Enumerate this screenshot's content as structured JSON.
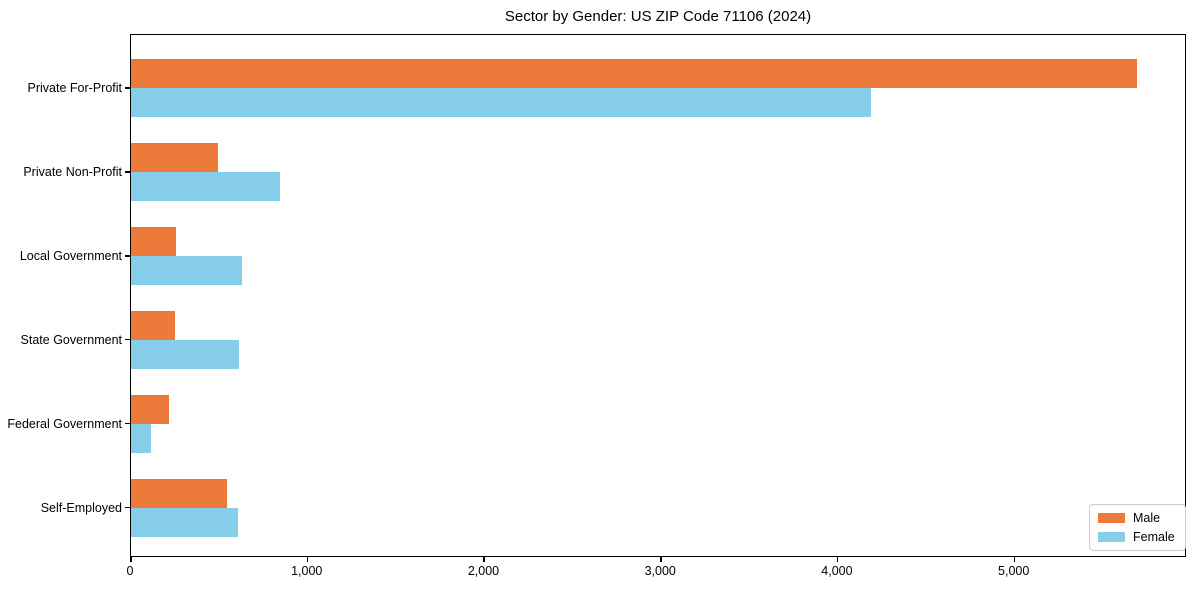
{
  "chart_data": {
    "type": "bar",
    "orientation": "horizontal",
    "title": "Sector by Gender: US ZIP Code 71106 (2024)",
    "categories": [
      "Private For-Profit",
      "Private Non-Profit",
      "Local Government",
      "State Government",
      "Federal Government",
      "Self-Employed"
    ],
    "series": [
      {
        "name": "Male",
        "color": "#EC7A3B",
        "values": [
          5690,
          490,
          255,
          250,
          215,
          545
        ]
      },
      {
        "name": "Female",
        "color": "#87CEEB",
        "values": [
          4185,
          845,
          630,
          610,
          115,
          605
        ]
      }
    ],
    "xlabel": "",
    "ylabel": "",
    "xlim": [
      0,
      5975
    ],
    "xticks": [
      0,
      1000,
      2000,
      3000,
      4000,
      5000
    ],
    "xtick_labels": [
      "0",
      "1,000",
      "2,000",
      "3,000",
      "4,000",
      "5,000"
    ],
    "grid": false,
    "legend_position": "lower right",
    "axis_color": "#000000",
    "background_color": "#ffffff"
  }
}
